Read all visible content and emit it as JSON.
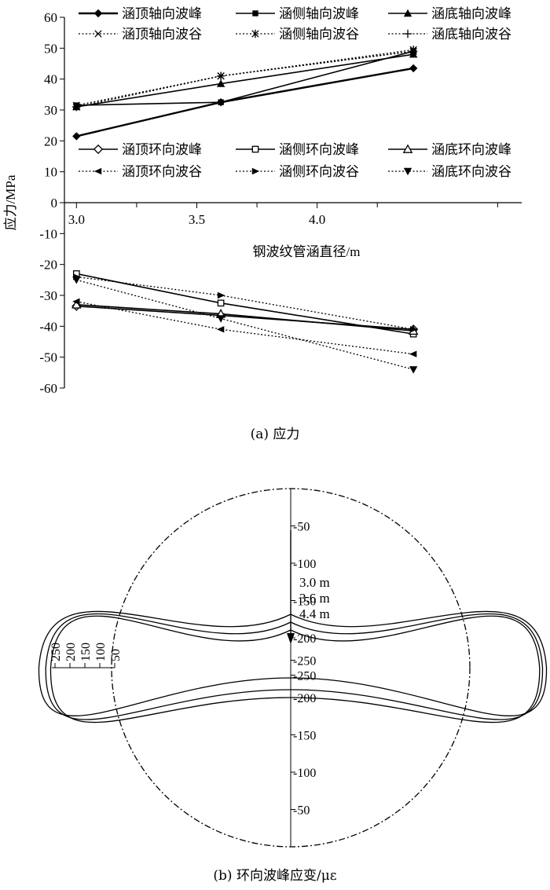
{
  "chart_data": [
    {
      "type": "line",
      "ylabel": "应力/MPa",
      "xlabel": "钢波纹管涵直径/m",
      "caption": "(a) 应力",
      "xlim": [
        2.95,
        4.85
      ],
      "ylim": [
        -60,
        60
      ],
      "xticks": [
        "3.0",
        "3.5",
        "4.0"
      ],
      "yticks": [
        "60",
        "50",
        "40",
        "30",
        "20",
        "10",
        "0",
        "-10",
        "-20",
        "-30",
        "-40",
        "-50",
        "-60"
      ],
      "x": [
        3.0,
        3.6,
        4.4
      ],
      "legend": "two-blocks-top",
      "series": [
        {
          "name": "涵顶轴向波峰",
          "values": [
            21.5,
            32.5,
            43.5
          ],
          "dash": "solid",
          "width": 2.4,
          "marker": "diamond-filled"
        },
        {
          "name": "涵侧轴向波峰",
          "values": [
            31.5,
            32.5,
            49.0
          ],
          "dash": "solid",
          "width": 1.6,
          "marker": "square-filled"
        },
        {
          "name": "涵底轴向波峰",
          "values": [
            31.0,
            38.5,
            48.0
          ],
          "dash": "solid",
          "width": 1.6,
          "marker": "triangle-filled"
        },
        {
          "name": "涵顶轴向波谷",
          "values": [
            31.5,
            41.0,
            49.0
          ],
          "dash": "dotted",
          "width": 1.3,
          "marker": "x"
        },
        {
          "name": "涵侧轴向波谷",
          "values": [
            31.0,
            41.0,
            49.5
          ],
          "dash": "dotted",
          "width": 1.3,
          "marker": "star"
        },
        {
          "name": "涵底轴向波谷",
          "values": [
            31.0,
            41.0,
            49.0
          ],
          "dash": "dotted",
          "width": 1.3,
          "marker": "plus"
        },
        {
          "name": "涵顶环向波峰",
          "values": [
            -33.5,
            -36.5,
            -41.0
          ],
          "dash": "solid",
          "width": 1.6,
          "marker": "diamond-open"
        },
        {
          "name": "涵侧环向波峰",
          "values": [
            -23.0,
            -32.5,
            -42.5
          ],
          "dash": "solid",
          "width": 1.6,
          "marker": "square-open"
        },
        {
          "name": "涵底环向波峰",
          "values": [
            -33.0,
            -36.0,
            -41.5
          ],
          "dash": "solid",
          "width": 1.6,
          "marker": "triangle-open"
        },
        {
          "name": "涵顶环向波谷",
          "values": [
            -32.0,
            -41.0,
            -49.0
          ],
          "dash": "dotted",
          "width": 1.3,
          "marker": "tri-left"
        },
        {
          "name": "涵侧环向波谷",
          "values": [
            -24.0,
            -30.0,
            -41.0
          ],
          "dash": "dotted",
          "width": 1.3,
          "marker": "tri-right"
        },
        {
          "name": "涵底环向波谷",
          "values": [
            -25.0,
            -37.5,
            -54.0
          ],
          "dash": "dotted",
          "width": 1.3,
          "marker": "tri-down"
        }
      ]
    },
    {
      "type": "polar",
      "caption": "(b) 环向波峰应变/με",
      "rings": [
        50,
        100,
        150,
        200,
        250
      ],
      "radial_axis_labels": [
        "250",
        "200",
        "150",
        "100",
        "50"
      ],
      "series_labels": [
        "3.0 m",
        "3.6 m",
        "4.4 m"
      ],
      "positions": [
        "top",
        "left",
        "right",
        "bottom"
      ],
      "series": [
        {
          "name": "3.0 m",
          "strain": {
            "top": -160,
            "left": -250,
            "right": -270,
            "bottom": -215
          }
        },
        {
          "name": "3.6 m",
          "strain": {
            "top": -170,
            "left": -215,
            "right": -250,
            "bottom": -200
          }
        },
        {
          "name": "4.4 m",
          "strain": {
            "top": -180,
            "left": -190,
            "right": -235,
            "bottom": -190
          }
        }
      ]
    }
  ]
}
